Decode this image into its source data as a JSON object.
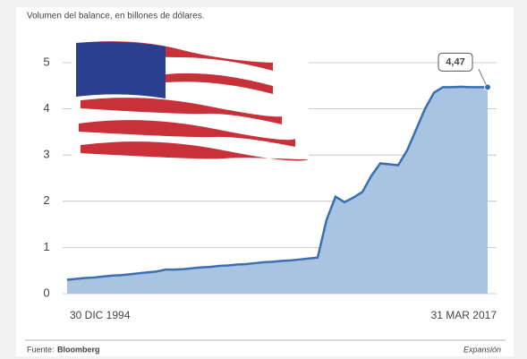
{
  "chart_data": {
    "type": "area",
    "title": "Volumen del balance, en billones de dólares.",
    "categories": [
      "30 DIC 1994",
      null,
      null,
      null,
      null,
      null,
      null,
      null,
      null,
      null,
      null,
      null,
      null,
      null,
      null,
      null,
      null,
      null,
      null,
      null,
      null,
      null,
      null,
      null,
      null,
      null,
      null,
      null,
      null,
      null,
      null,
      null,
      null,
      null,
      null,
      null,
      null,
      null,
      null,
      null,
      null,
      null,
      null,
      null,
      null,
      null,
      null,
      "31 MAR 2017"
    ],
    "values": [
      0.3,
      0.32,
      0.34,
      0.35,
      0.37,
      0.39,
      0.4,
      0.42,
      0.44,
      0.46,
      0.48,
      0.52,
      0.52,
      0.53,
      0.55,
      0.57,
      0.58,
      0.6,
      0.61,
      0.63,
      0.64,
      0.66,
      0.68,
      0.69,
      0.71,
      0.72,
      0.74,
      0.76,
      0.78,
      1.6,
      2.1,
      1.98,
      2.08,
      2.2,
      2.55,
      2.82,
      2.8,
      2.78,
      3.1,
      3.55,
      4.0,
      4.35,
      4.47,
      4.47,
      4.48,
      4.47,
      4.47,
      4.47
    ],
    "value_labels": [
      null,
      null,
      null,
      null,
      null,
      null,
      null,
      null,
      null,
      null,
      null,
      null,
      null,
      null,
      null,
      null,
      null,
      null,
      null,
      null,
      null,
      null,
      null,
      null,
      null,
      null,
      null,
      null,
      null,
      null,
      null,
      null,
      null,
      null,
      null,
      null,
      null,
      null,
      null,
      null,
      null,
      null,
      null,
      null,
      null,
      null,
      null,
      "4,47"
    ],
    "color": "#3a6fb0",
    "fill_color": "#a9c3e2",
    "ylim": [
      0,
      5
    ],
    "yticks": [
      0,
      1,
      2,
      3,
      4,
      5
    ],
    "grid": true,
    "source_label": "Fuente:",
    "source": "Bloomberg",
    "publisher": "Expansión"
  }
}
